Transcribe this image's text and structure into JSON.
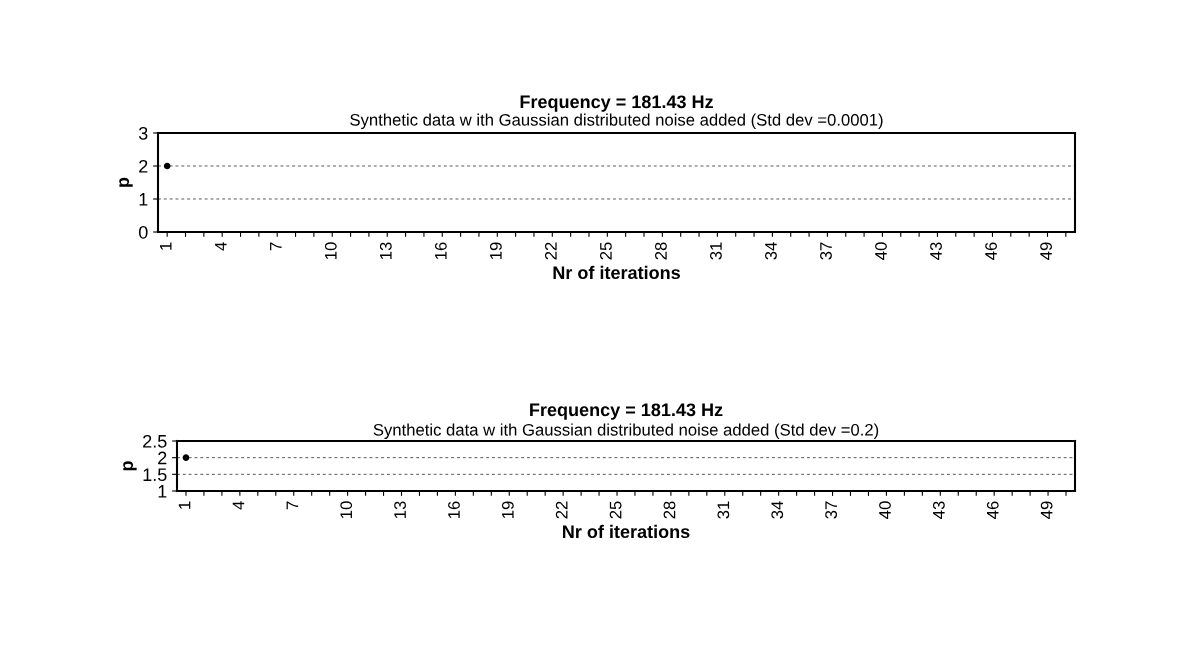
{
  "chart_data": [
    {
      "type": "scatter",
      "title": "Frequency = 181.43 Hz",
      "subtitle": "Synthetic data w ith Gaussian distributed noise added (Std dev =0.0001)",
      "xlabel": "Nr of iterations",
      "ylabel": "p",
      "categories": [
        "1",
        null,
        null,
        "4",
        null,
        null,
        "7",
        null,
        null,
        "10",
        null,
        null,
        "13",
        null,
        null,
        "16",
        null,
        null,
        "19",
        null,
        null,
        "22",
        null,
        null,
        "25",
        null,
        null,
        "28",
        null,
        null,
        "31",
        null,
        null,
        "34",
        null,
        null,
        "37",
        null,
        null,
        "40",
        null,
        null,
        "43",
        null,
        null,
        "46",
        null,
        null,
        "49",
        null
      ],
      "series": [
        {
          "color": "#000000",
          "values": [
            2,
            null,
            null,
            null,
            null,
            null,
            null,
            null,
            null,
            null,
            null,
            null,
            null,
            null,
            null,
            null,
            null,
            null,
            null,
            null,
            null,
            null,
            null,
            null,
            null,
            null,
            null,
            null,
            null,
            null,
            null,
            null,
            null,
            null,
            null,
            null,
            null,
            null,
            null,
            null,
            null,
            null,
            null,
            null,
            null,
            null,
            null,
            null,
            null,
            null
          ]
        }
      ],
      "ylim": [
        0,
        3
      ],
      "yticks": [
        0,
        1,
        2,
        3
      ],
      "grid": "y",
      "marker": "circle",
      "legend": false
    },
    {
      "type": "scatter",
      "title": "Frequency = 181.43 Hz",
      "subtitle": "Synthetic data w ith Gaussian distributed noise added (Std dev =0.2)",
      "xlabel": "Nr of iterations",
      "ylabel": "p",
      "categories": [
        "1",
        null,
        null,
        "4",
        null,
        null,
        "7",
        null,
        null,
        "10",
        null,
        null,
        "13",
        null,
        null,
        "16",
        null,
        null,
        "19",
        null,
        null,
        "22",
        null,
        null,
        "25",
        null,
        null,
        "28",
        null,
        null,
        "31",
        null,
        null,
        "34",
        null,
        null,
        "37",
        null,
        null,
        "40",
        null,
        null,
        "43",
        null,
        null,
        "46",
        null,
        null,
        "49",
        null
      ],
      "series": [
        {
          "color": "#000000",
          "values": [
            2,
            null,
            null,
            null,
            null,
            null,
            null,
            null,
            null,
            null,
            null,
            null,
            null,
            null,
            null,
            null,
            null,
            null,
            null,
            null,
            null,
            null,
            null,
            null,
            null,
            null,
            null,
            null,
            null,
            null,
            null,
            null,
            null,
            null,
            null,
            null,
            null,
            null,
            null,
            null,
            null,
            null,
            null,
            null,
            null,
            null,
            null,
            null,
            null,
            null
          ]
        }
      ],
      "ylim": [
        1,
        2.5
      ],
      "yticks": [
        1,
        1.5,
        2,
        2.5
      ],
      "grid": "y",
      "marker": "circle",
      "legend": false
    }
  ]
}
